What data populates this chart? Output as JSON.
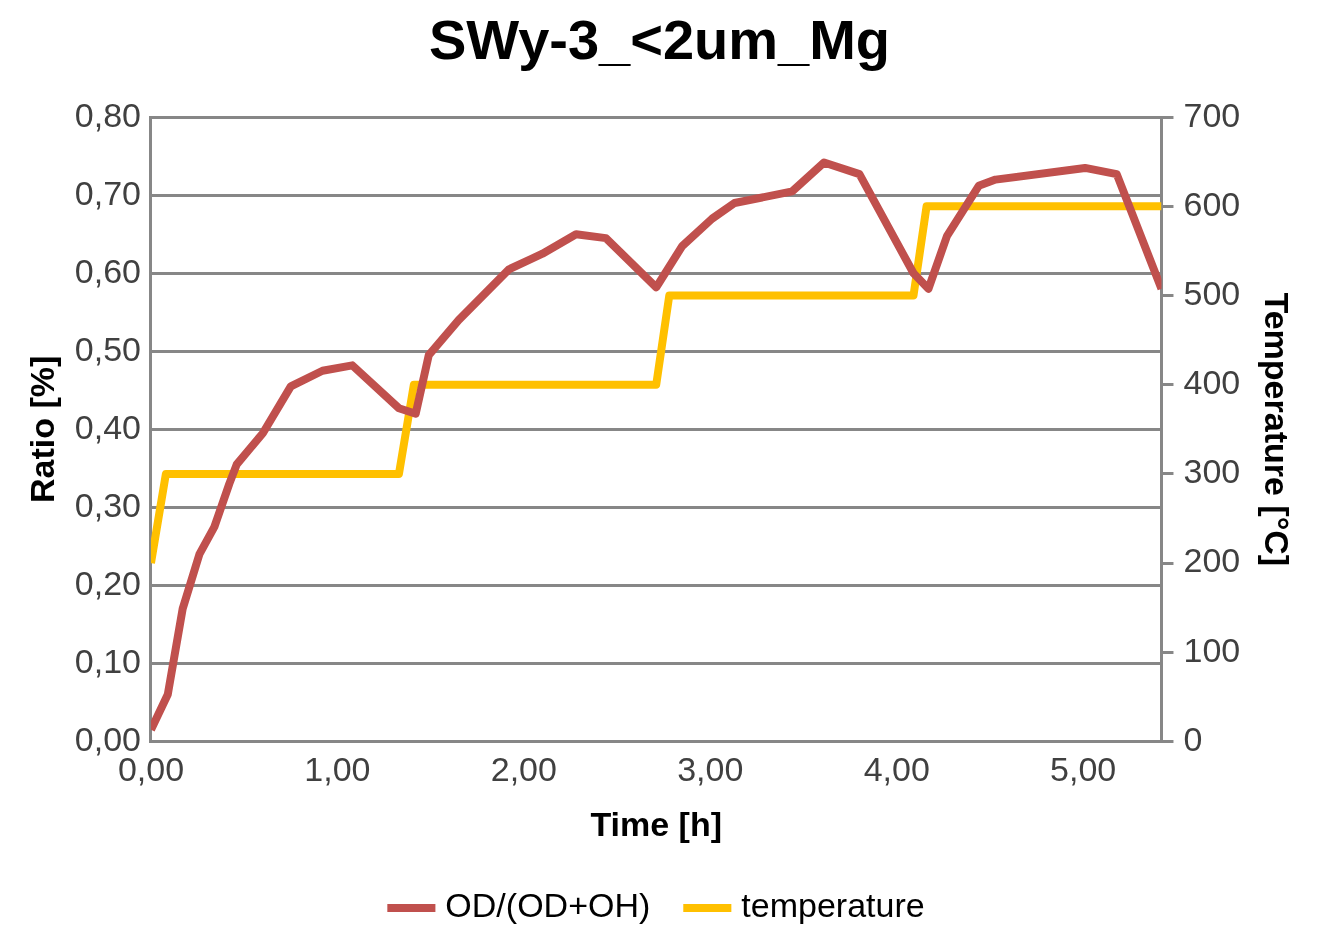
{
  "chart_data": {
    "type": "line",
    "title": "SWy-3_<2um_Mg",
    "xlabel": "Time [h]",
    "ylabel": "Ratio [%]",
    "y2label": "Temperature [°C]",
    "xlim": [
      0,
      5.42
    ],
    "xticks": [
      {
        "value": 0,
        "label": "0,00"
      },
      {
        "value": 1,
        "label": "1,00"
      },
      {
        "value": 2,
        "label": "2,00"
      },
      {
        "value": 3,
        "label": "3,00"
      },
      {
        "value": 4,
        "label": "4,00"
      },
      {
        "value": 5,
        "label": "5,00"
      }
    ],
    "ylim": [
      0,
      0.8
    ],
    "yticks": [
      {
        "value": 0,
        "label": "0,00"
      },
      {
        "value": 0.1,
        "label": "0,10"
      },
      {
        "value": 0.2,
        "label": "0,20"
      },
      {
        "value": 0.3,
        "label": "0,30"
      },
      {
        "value": 0.4,
        "label": "0,40"
      },
      {
        "value": 0.5,
        "label": "0,50"
      },
      {
        "value": 0.6,
        "label": "0,60"
      },
      {
        "value": 0.7,
        "label": "0,70"
      },
      {
        "value": 0.8,
        "label": "0,80"
      }
    ],
    "y2lim": [
      0,
      700
    ],
    "y2ticks": [
      0,
      100,
      200,
      300,
      400,
      500,
      600,
      700
    ],
    "grid": "y",
    "legend": "bottom",
    "marker": "none",
    "line_style": "solid",
    "series": [
      {
        "name": "OD/(OD+OH)",
        "color": "#c0504d",
        "x": [
          0,
          0.09,
          0.17,
          0.26,
          0.34,
          0.42,
          0.46,
          0.6,
          0.75,
          0.92,
          1.08,
          1.33,
          1.42,
          1.49,
          1.65,
          1.92,
          2.1,
          2.28,
          2.44,
          2.71,
          2.85,
          3.01,
          3.13,
          3.44,
          3.61,
          3.8,
          4.09,
          4.17,
          4.27,
          4.44,
          4.53,
          5.01,
          5.18,
          5.42
        ],
        "values": [
          0.015,
          0.06,
          0.17,
          0.24,
          0.275,
          0.33,
          0.355,
          0.395,
          0.455,
          0.475,
          0.482,
          0.427,
          0.42,
          0.495,
          0.54,
          0.605,
          0.625,
          0.65,
          0.645,
          0.582,
          0.635,
          0.67,
          0.69,
          0.705,
          0.742,
          0.727,
          0.6,
          0.58,
          0.648,
          0.712,
          0.72,
          0.735,
          0.727,
          0.58
        ]
      },
      {
        "name": "temperature",
        "color": "#ffc000",
        "axis": "y2",
        "x": [
          0,
          0.08,
          1.33,
          1.41,
          2.71,
          2.78,
          4.09,
          4.16,
          5.42
        ],
        "values": [
          200,
          300,
          300,
          400,
          400,
          500,
          500,
          600,
          600
        ]
      }
    ]
  }
}
